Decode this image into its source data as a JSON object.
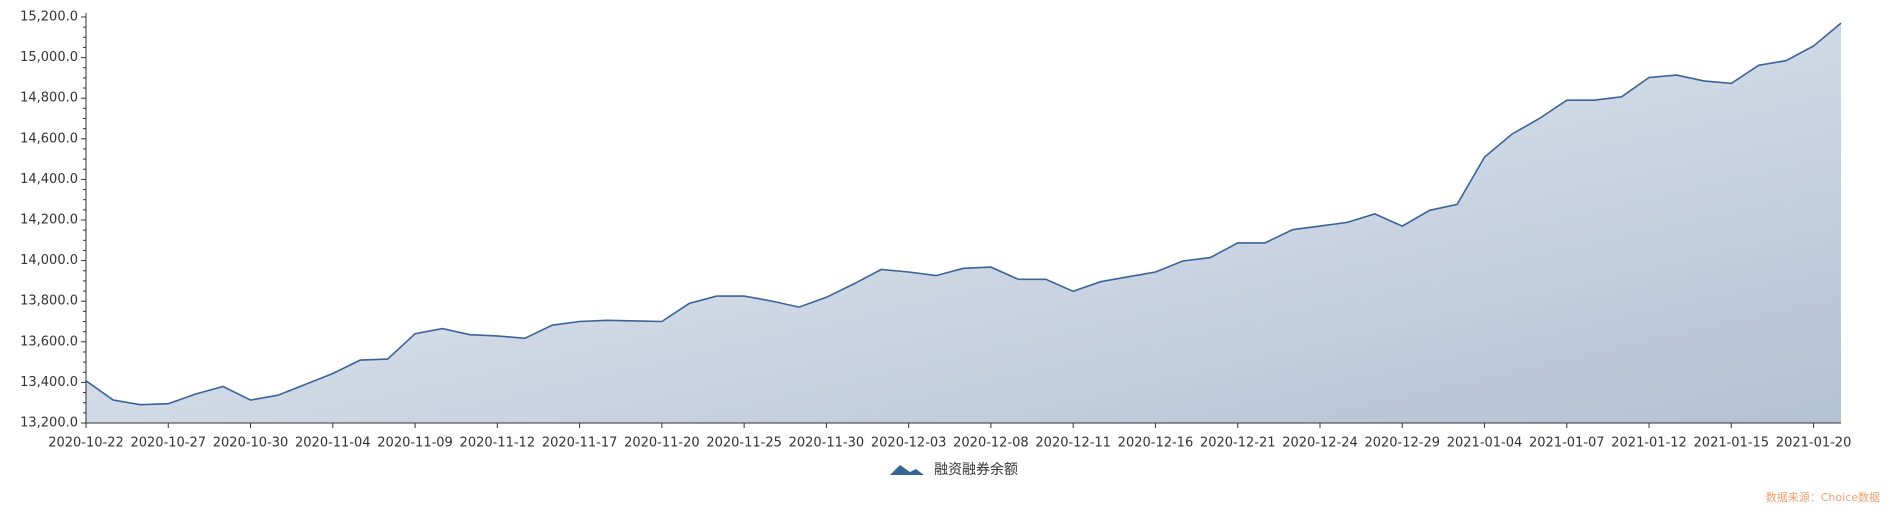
{
  "chart_data": {
    "type": "area",
    "categories": [
      "2020-10-22",
      null,
      null,
      "2020-10-27",
      null,
      null,
      "2020-10-30",
      null,
      null,
      "2020-11-04",
      null,
      null,
      "2020-11-09",
      null,
      null,
      "2020-11-12",
      null,
      null,
      "2020-11-17",
      null,
      null,
      "2020-11-20",
      null,
      null,
      "2020-11-25",
      null,
      null,
      "2020-11-30",
      null,
      null,
      "2020-12-03",
      null,
      null,
      "2020-12-08",
      null,
      null,
      "2020-12-11",
      null,
      null,
      "2020-12-16",
      null,
      null,
      "2020-12-21",
      null,
      null,
      "2020-12-24",
      null,
      null,
      "2020-12-29",
      null,
      null,
      "2021-01-04",
      null,
      null,
      "2021-01-07",
      null,
      null,
      "2021-01-12",
      null,
      null,
      "2021-01-15",
      null,
      null,
      "2021-01-20",
      null
    ],
    "series": [
      {
        "name": "融资融券余额",
        "color": "#3a6399",
        "values": [
          13408,
          13313,
          13290,
          13295,
          13343,
          13380,
          13313,
          13337,
          13390,
          13444,
          13510,
          13515,
          13640,
          13665,
          13635,
          13629,
          13617,
          13682,
          13700,
          13706,
          13703,
          13700,
          13789,
          13825,
          13825,
          13801,
          13771,
          13819,
          13885,
          13956,
          13944,
          13926,
          13962,
          13968,
          13908,
          13908,
          13849,
          13896,
          13920,
          13944,
          13998,
          14015,
          14087,
          14087,
          14152,
          14170,
          14188,
          14230,
          14170,
          14248,
          14277,
          14510,
          14623,
          14700,
          14790,
          14790,
          14807,
          14902,
          14914,
          14885,
          14873,
          14962,
          14985,
          15057,
          15170
        ]
      }
    ],
    "ylim": [
      13200,
      15200
    ],
    "yticks": [
      {
        "value": 13200,
        "label": "13,200.0"
      },
      {
        "value": 13400,
        "label": "13,400.0"
      },
      {
        "value": 13600,
        "label": "13,600.0"
      },
      {
        "value": 13800,
        "label": "13,800.0"
      },
      {
        "value": 14000,
        "label": "14,000.0"
      },
      {
        "value": 14200,
        "label": "14,200.0"
      },
      {
        "value": 14400,
        "label": "14,400.0"
      },
      {
        "value": 14600,
        "label": "14,600.0"
      },
      {
        "value": 14800,
        "label": "14,800.0"
      },
      {
        "value": 15000,
        "label": "15,000.0"
      },
      {
        "value": 15200,
        "label": "15,200.0"
      }
    ],
    "source": "数据来源：Choice数据"
  }
}
